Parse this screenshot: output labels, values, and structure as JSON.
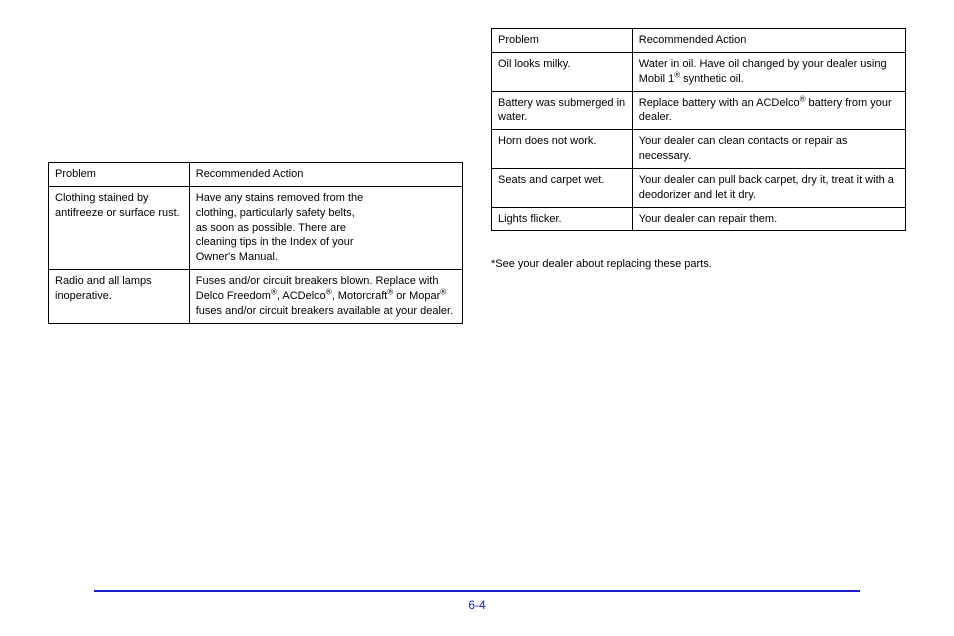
{
  "left_table": {
    "headers": [
      "Problem",
      "Recommended Action"
    ],
    "rows": [
      {
        "problem": "Clothing stained by antifreeze or surface rust.",
        "action_lines": [
          "Have any stains removed from the",
          "clothing, particularly safety belts,",
          "as soon as possible. There are",
          "cleaning tips in the Index of your",
          "Owner's Manual."
        ]
      },
      {
        "problem": "Radio and all lamps inoperative.",
        "action_html": "Fuses and/or circuit breakers blown. Replace with Delco Freedom<sup class='r'>®</sup>, ACDelco<sup class='r'>®</sup>, Motorcraft<sup class='r'>®</sup> or Mopar<sup class='r'>®</sup> fuses and/or circuit breakers available at your dealer."
      }
    ]
  },
  "right_table": {
    "headers": [
      "Problem",
      "Recommended Action"
    ],
    "rows": [
      {
        "problem": "Oil looks milky.",
        "action_html": "Water in oil. Have oil changed by your dealer using Mobil 1<sup class='r'>®</sup> synthetic oil."
      },
      {
        "problem": "Battery was submerged in water.",
        "action_html": "Replace battery with an ACDelco<sup class='r'>®</sup> battery from your dealer."
      },
      {
        "problem": "Horn does not work.",
        "action": "Your dealer can clean contacts or repair as necessary."
      },
      {
        "problem": "Seats and carpet wet.",
        "action": "Your dealer can pull back carpet, dry it, treat it with a deodorizer and let it dry."
      },
      {
        "problem": "Lights flicker.",
        "action": "Your dealer can repair them."
      }
    ]
  },
  "footnote": "*See your dealer about replacing these parts.",
  "footer": "6-4"
}
